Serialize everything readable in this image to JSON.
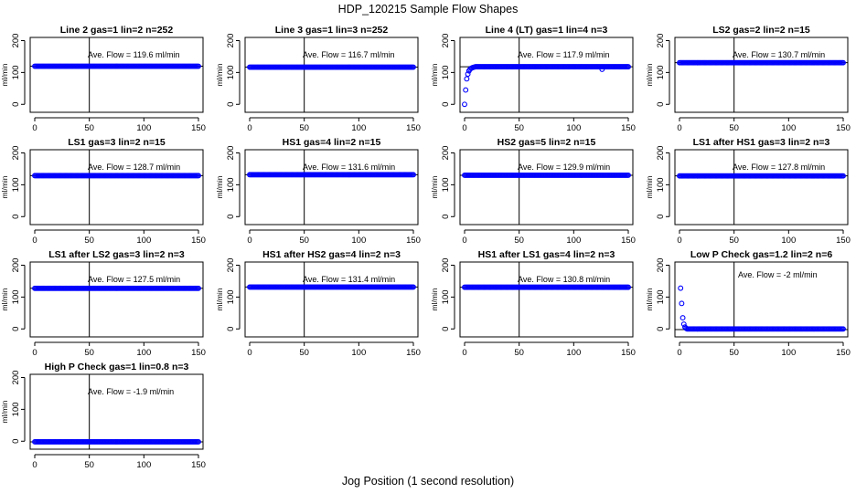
{
  "figure": {
    "title": "HDP_120215  Sample Flow Shapes",
    "xlabel": "Jog Position (1 second resolution)",
    "ylabel": "ml/min"
  },
  "chart_data": [
    {
      "type": "scatter",
      "title": "Line 2 gas=1 lin=2 n=252",
      "annotation": "Ave. Flow =  119.6  ml/min",
      "flow": 119.6,
      "shape": "flat",
      "xlim": [
        0,
        150
      ],
      "ylim": [
        -25,
        210
      ],
      "xticks": [
        0,
        50,
        100,
        150
      ],
      "yticks": [
        0,
        100,
        200
      ],
      "vline": 50,
      "hline": 119.6
    },
    {
      "type": "scatter",
      "title": "Line 3 gas=1 lin=3 n=252",
      "annotation": "Ave. Flow =  116.7  ml/min",
      "flow": 116.7,
      "shape": "flat",
      "xlim": [
        0,
        150
      ],
      "ylim": [
        -25,
        210
      ],
      "xticks": [
        0,
        50,
        100,
        150
      ],
      "yticks": [
        0,
        100,
        200
      ],
      "vline": 50,
      "hline": 116.7
    },
    {
      "type": "scatter",
      "title": "Line 4 (LT) gas=1 lin=4 n=3",
      "annotation": "Ave. Flow =  117.9  ml/min",
      "flow": 117.9,
      "shape": "rise",
      "xlim": [
        0,
        150
      ],
      "ylim": [
        -25,
        210
      ],
      "xticks": [
        0,
        50,
        100,
        150
      ],
      "yticks": [
        0,
        100,
        200
      ],
      "vline": 50,
      "hline": 117.9
    },
    {
      "type": "scatter",
      "title": "LS2 gas=2 lin=2 n=15",
      "annotation": "Ave. Flow =  130.7  ml/min",
      "flow": 130.7,
      "shape": "flat",
      "xlim": [
        0,
        150
      ],
      "ylim": [
        -25,
        210
      ],
      "xticks": [
        0,
        50,
        100,
        150
      ],
      "yticks": [
        0,
        100,
        200
      ],
      "vline": 50,
      "hline": 130.7
    },
    {
      "type": "scatter",
      "title": "LS1 gas=3 lin=2 n=15",
      "annotation": "Ave. Flow =  128.7  ml/min",
      "flow": 128.7,
      "shape": "flat",
      "xlim": [
        0,
        150
      ],
      "ylim": [
        -25,
        210
      ],
      "xticks": [
        0,
        50,
        100,
        150
      ],
      "yticks": [
        0,
        100,
        200
      ],
      "vline": 50,
      "hline": 128.7
    },
    {
      "type": "scatter",
      "title": "HS1 gas=4 lin=2 n=15",
      "annotation": "Ave. Flow =  131.6  ml/min",
      "flow": 131.6,
      "shape": "flat",
      "xlim": [
        0,
        150
      ],
      "ylim": [
        -25,
        210
      ],
      "xticks": [
        0,
        50,
        100,
        150
      ],
      "yticks": [
        0,
        100,
        200
      ],
      "vline": 50,
      "hline": 131.6
    },
    {
      "type": "scatter",
      "title": "HS2 gas=5 lin=2 n=15",
      "annotation": "Ave. Flow =  129.9  ml/min",
      "flow": 129.9,
      "shape": "flat",
      "xlim": [
        0,
        150
      ],
      "ylim": [
        -25,
        210
      ],
      "xticks": [
        0,
        50,
        100,
        150
      ],
      "yticks": [
        0,
        100,
        200
      ],
      "vline": 50,
      "hline": 129.9
    },
    {
      "type": "scatter",
      "title": "LS1 after HS1 gas=3 lin=2 n=3",
      "annotation": "Ave. Flow =  127.8  ml/min",
      "flow": 127.8,
      "shape": "flat",
      "xlim": [
        0,
        150
      ],
      "ylim": [
        -25,
        210
      ],
      "xticks": [
        0,
        50,
        100,
        150
      ],
      "yticks": [
        0,
        100,
        200
      ],
      "vline": 50,
      "hline": 127.8
    },
    {
      "type": "scatter",
      "title": "LS1 after LS2 gas=3 lin=2 n=3",
      "annotation": "Ave. Flow =  127.5  ml/min",
      "flow": 127.5,
      "shape": "flat",
      "xlim": [
        0,
        150
      ],
      "ylim": [
        -25,
        210
      ],
      "xticks": [
        0,
        50,
        100,
        150
      ],
      "yticks": [
        0,
        100,
        200
      ],
      "vline": 50,
      "hline": 127.5
    },
    {
      "type": "scatter",
      "title": "HS1 after HS2 gas=4 lin=2 n=3",
      "annotation": "Ave. Flow =  131.4  ml/min",
      "flow": 131.4,
      "shape": "flat",
      "xlim": [
        0,
        150
      ],
      "ylim": [
        -25,
        210
      ],
      "xticks": [
        0,
        50,
        100,
        150
      ],
      "yticks": [
        0,
        100,
        200
      ],
      "vline": 50,
      "hline": 131.4
    },
    {
      "type": "scatter",
      "title": "HS1 after LS1 gas=4 lin=2 n=3",
      "annotation": "Ave. Flow =  130.8  ml/min",
      "flow": 130.8,
      "shape": "flat",
      "xlim": [
        0,
        150
      ],
      "ylim": [
        -25,
        210
      ],
      "xticks": [
        0,
        50,
        100,
        150
      ],
      "yticks": [
        0,
        100,
        200
      ],
      "vline": 50,
      "hline": 130.8
    },
    {
      "type": "scatter",
      "title": "Low P Check gas=1.2 lin=2 n=6",
      "annotation": "Ave. Flow =  -2  ml/min",
      "flow": -2,
      "shape": "decay",
      "xlim": [
        0,
        150
      ],
      "ylim": [
        -25,
        210
      ],
      "xticks": [
        0,
        50,
        100,
        150
      ],
      "yticks": [
        0,
        100,
        200
      ],
      "vline": 50,
      "hline": -2
    },
    {
      "type": "scatter",
      "title": "High P Check gas=1 lin=0.8 n=3",
      "annotation": "Ave. Flow =  -1.9  ml/min",
      "flow": -1.9,
      "shape": "flat",
      "xlim": [
        0,
        150
      ],
      "ylim": [
        -25,
        210
      ],
      "xticks": [
        0,
        50,
        100,
        150
      ],
      "yticks": [
        0,
        100,
        200
      ],
      "vline": 50,
      "hline": -1.9
    }
  ]
}
